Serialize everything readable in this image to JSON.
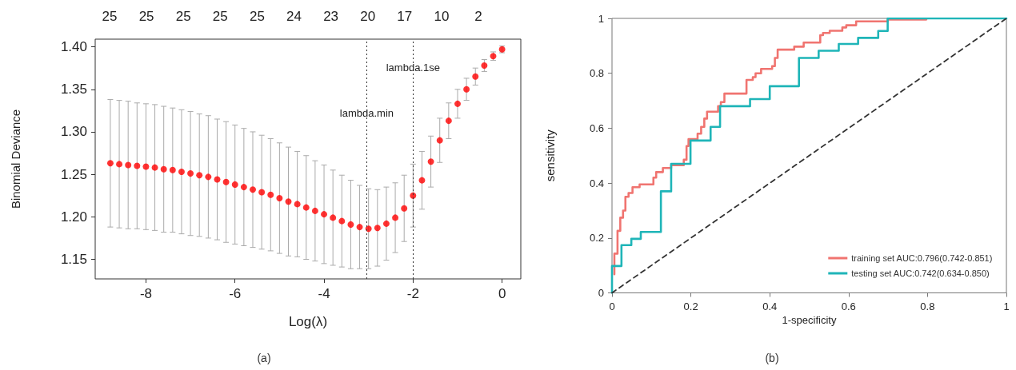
{
  "chart_data": [
    {
      "type": "scatter",
      "xlabel": "Log(λ)",
      "ylabel": "Binomial Deviance",
      "marker": "circle",
      "annotations": [
        "(a)",
        "25",
        "25",
        "25",
        "25",
        "25",
        "24",
        "23",
        "20",
        "17",
        "10",
        "2"
      ],
      "xlim": [
        -9.14,
        0.42
      ],
      "xticks": [
        -8,
        -6,
        -4,
        -2,
        0
      ],
      "ylim": [
        1.127,
        1.409
      ],
      "yticks": [
        {
          "value": 1.15,
          "label": "1.15"
        },
        {
          "value": 1.2,
          "label": "1.20"
        },
        {
          "value": 1.25,
          "label": "1.25"
        },
        {
          "value": 1.3,
          "label": "1.30"
        },
        {
          "value": 1.35,
          "label": "1.35"
        },
        {
          "value": 1.4,
          "label": "1.40"
        }
      ],
      "ref_lines": [
        {
          "axis": "x",
          "value": -3.04,
          "label": "lambda.min",
          "color": "#333333",
          "line_style": "dotted"
        },
        {
          "axis": "x",
          "value": -2.0,
          "label": "lambda.1se",
          "color": "#333333",
          "line_style": "dotted"
        }
      ],
      "x": [
        -8.8,
        -8.6,
        -8.4,
        -8.2,
        -8.0,
        -7.8,
        -7.6,
        -7.4,
        -7.2,
        -7.0,
        -6.8,
        -6.6,
        -6.4,
        -6.2,
        -6.0,
        -5.8,
        -5.6,
        -5.4,
        -5.2,
        -5.0,
        -4.8,
        -4.6,
        -4.4,
        -4.2,
        -4.0,
        -3.8,
        -3.6,
        -3.4,
        -3.2,
        -3.0,
        -2.8,
        -2.6,
        -2.4,
        -2.2,
        -2.0,
        -1.8,
        -1.6,
        -1.4,
        -1.2,
        -1.0,
        -0.8,
        -0.6,
        -0.4,
        -0.2,
        0.0
      ],
      "series": [
        {
          "color": "#ff0000",
          "values": [
            1.263,
            1.262,
            1.261,
            1.26,
            1.259,
            1.258,
            1.256,
            1.255,
            1.253,
            1.251,
            1.249,
            1.247,
            1.244,
            1.241,
            1.238,
            1.235,
            1.232,
            1.229,
            1.226,
            1.222,
            1.218,
            1.215,
            1.211,
            1.207,
            1.203,
            1.199,
            1.195,
            1.191,
            1.188,
            1.186,
            1.187,
            1.192,
            1.199,
            1.21,
            1.225,
            1.243,
            1.265,
            1.29,
            1.313,
            1.333,
            1.35,
            1.365,
            1.378,
            1.389,
            1.397
          ],
          "errors": [
            0.075,
            0.075,
            0.075,
            0.074,
            0.074,
            0.074,
            0.074,
            0.073,
            0.073,
            0.073,
            0.072,
            0.072,
            0.071,
            0.071,
            0.07,
            0.069,
            0.068,
            0.067,
            0.066,
            0.065,
            0.064,
            0.062,
            0.061,
            0.059,
            0.058,
            0.056,
            0.054,
            0.052,
            0.049,
            0.047,
            0.045,
            0.043,
            0.041,
            0.039,
            0.037,
            0.034,
            0.03,
            0.026,
            0.021,
            0.017,
            0.013,
            0.01,
            0.007,
            0.005,
            0.004
          ]
        }
      ]
    },
    {
      "type": "line",
      "xlabel": "1-specificity",
      "ylabel": "sensitivity",
      "legend": "bottom right",
      "marker": "none",
      "annotations": [
        "(b)"
      ],
      "xlim": [
        0,
        1
      ],
      "xticks": [
        0,
        0.2,
        0.4,
        0.6,
        0.8,
        1
      ],
      "ylim": [
        0,
        1
      ],
      "yticks": [
        0,
        0.2,
        0.4,
        0.6,
        0.8,
        1
      ],
      "series": [
        {
          "name": "training set AUC:0.796(0.742-0.851)",
          "color": "#f07470",
          "line_style": "solid",
          "x": [
            0.006,
            0.006,
            0.014,
            0.014,
            0.021,
            0.021,
            0.028,
            0.028,
            0.034,
            0.034,
            0.042,
            0.042,
            0.052,
            0.052,
            0.07,
            0.07,
            0.105,
            0.105,
            0.112,
            0.112,
            0.129,
            0.129,
            0.15,
            0.15,
            0.182,
            0.182,
            0.189,
            0.189,
            0.194,
            0.194,
            0.217,
            0.217,
            0.226,
            0.226,
            0.234,
            0.234,
            0.241,
            0.241,
            0.269,
            0.269,
            0.276,
            0.276,
            0.285,
            0.285,
            0.341,
            0.341,
            0.357,
            0.357,
            0.364,
            0.364,
            0.378,
            0.378,
            0.406,
            0.406,
            0.413,
            0.413,
            0.42,
            0.42,
            0.462,
            0.462,
            0.486,
            0.486,
            0.528,
            0.528,
            0.535,
            0.535,
            0.552,
            0.552,
            0.584,
            0.584,
            0.594,
            0.594,
            0.619,
            0.619,
            0.699,
            0.699,
            0.797
          ],
          "values": [
            0.068,
            0.143,
            0.143,
            0.226,
            0.226,
            0.274,
            0.274,
            0.3,
            0.3,
            0.35,
            0.35,
            0.364,
            0.364,
            0.385,
            0.385,
            0.395,
            0.395,
            0.42,
            0.42,
            0.44,
            0.44,
            0.455,
            0.455,
            0.465,
            0.465,
            0.485,
            0.485,
            0.535,
            0.535,
            0.56,
            0.56,
            0.58,
            0.58,
            0.605,
            0.605,
            0.635,
            0.635,
            0.66,
            0.66,
            0.68,
            0.68,
            0.695,
            0.695,
            0.726,
            0.726,
            0.776,
            0.776,
            0.786,
            0.786,
            0.8,
            0.8,
            0.816,
            0.816,
            0.826,
            0.826,
            0.856,
            0.856,
            0.886,
            0.886,
            0.897,
            0.897,
            0.912,
            0.912,
            0.939,
            0.939,
            0.947,
            0.947,
            0.955,
            0.955,
            0.967,
            0.967,
            0.975,
            0.975,
            0.989,
            0.989,
            0.996,
            0.996
          ]
        },
        {
          "name": "testing set AUC:0.742(0.634-0.850)",
          "color": "#1fb5b8",
          "line_style": "solid",
          "x": [
            0,
            0,
            0.024,
            0.024,
            0.049,
            0.049,
            0.073,
            0.073,
            0.124,
            0.124,
            0.15,
            0.15,
            0.199,
            0.199,
            0.25,
            0.25,
            0.274,
            0.274,
            0.35,
            0.35,
            0.4,
            0.4,
            0.474,
            0.474,
            0.524,
            0.524,
            0.575,
            0.575,
            0.624,
            0.624,
            0.675,
            0.675,
            0.699,
            0.699,
            1
          ],
          "values": [
            0,
            0.098,
            0.098,
            0.174,
            0.174,
            0.197,
            0.197,
            0.222,
            0.222,
            0.37,
            0.37,
            0.47,
            0.47,
            0.555,
            0.555,
            0.605,
            0.605,
            0.68,
            0.68,
            0.706,
            0.706,
            0.753,
            0.753,
            0.856,
            0.856,
            0.882,
            0.882,
            0.907,
            0.907,
            0.929,
            0.929,
            0.954,
            0.954,
            1,
            1
          ]
        },
        {
          "color": "#333333",
          "line_style": "dashed",
          "x": [
            0,
            1
          ],
          "values": [
            0,
            1
          ]
        }
      ]
    }
  ]
}
